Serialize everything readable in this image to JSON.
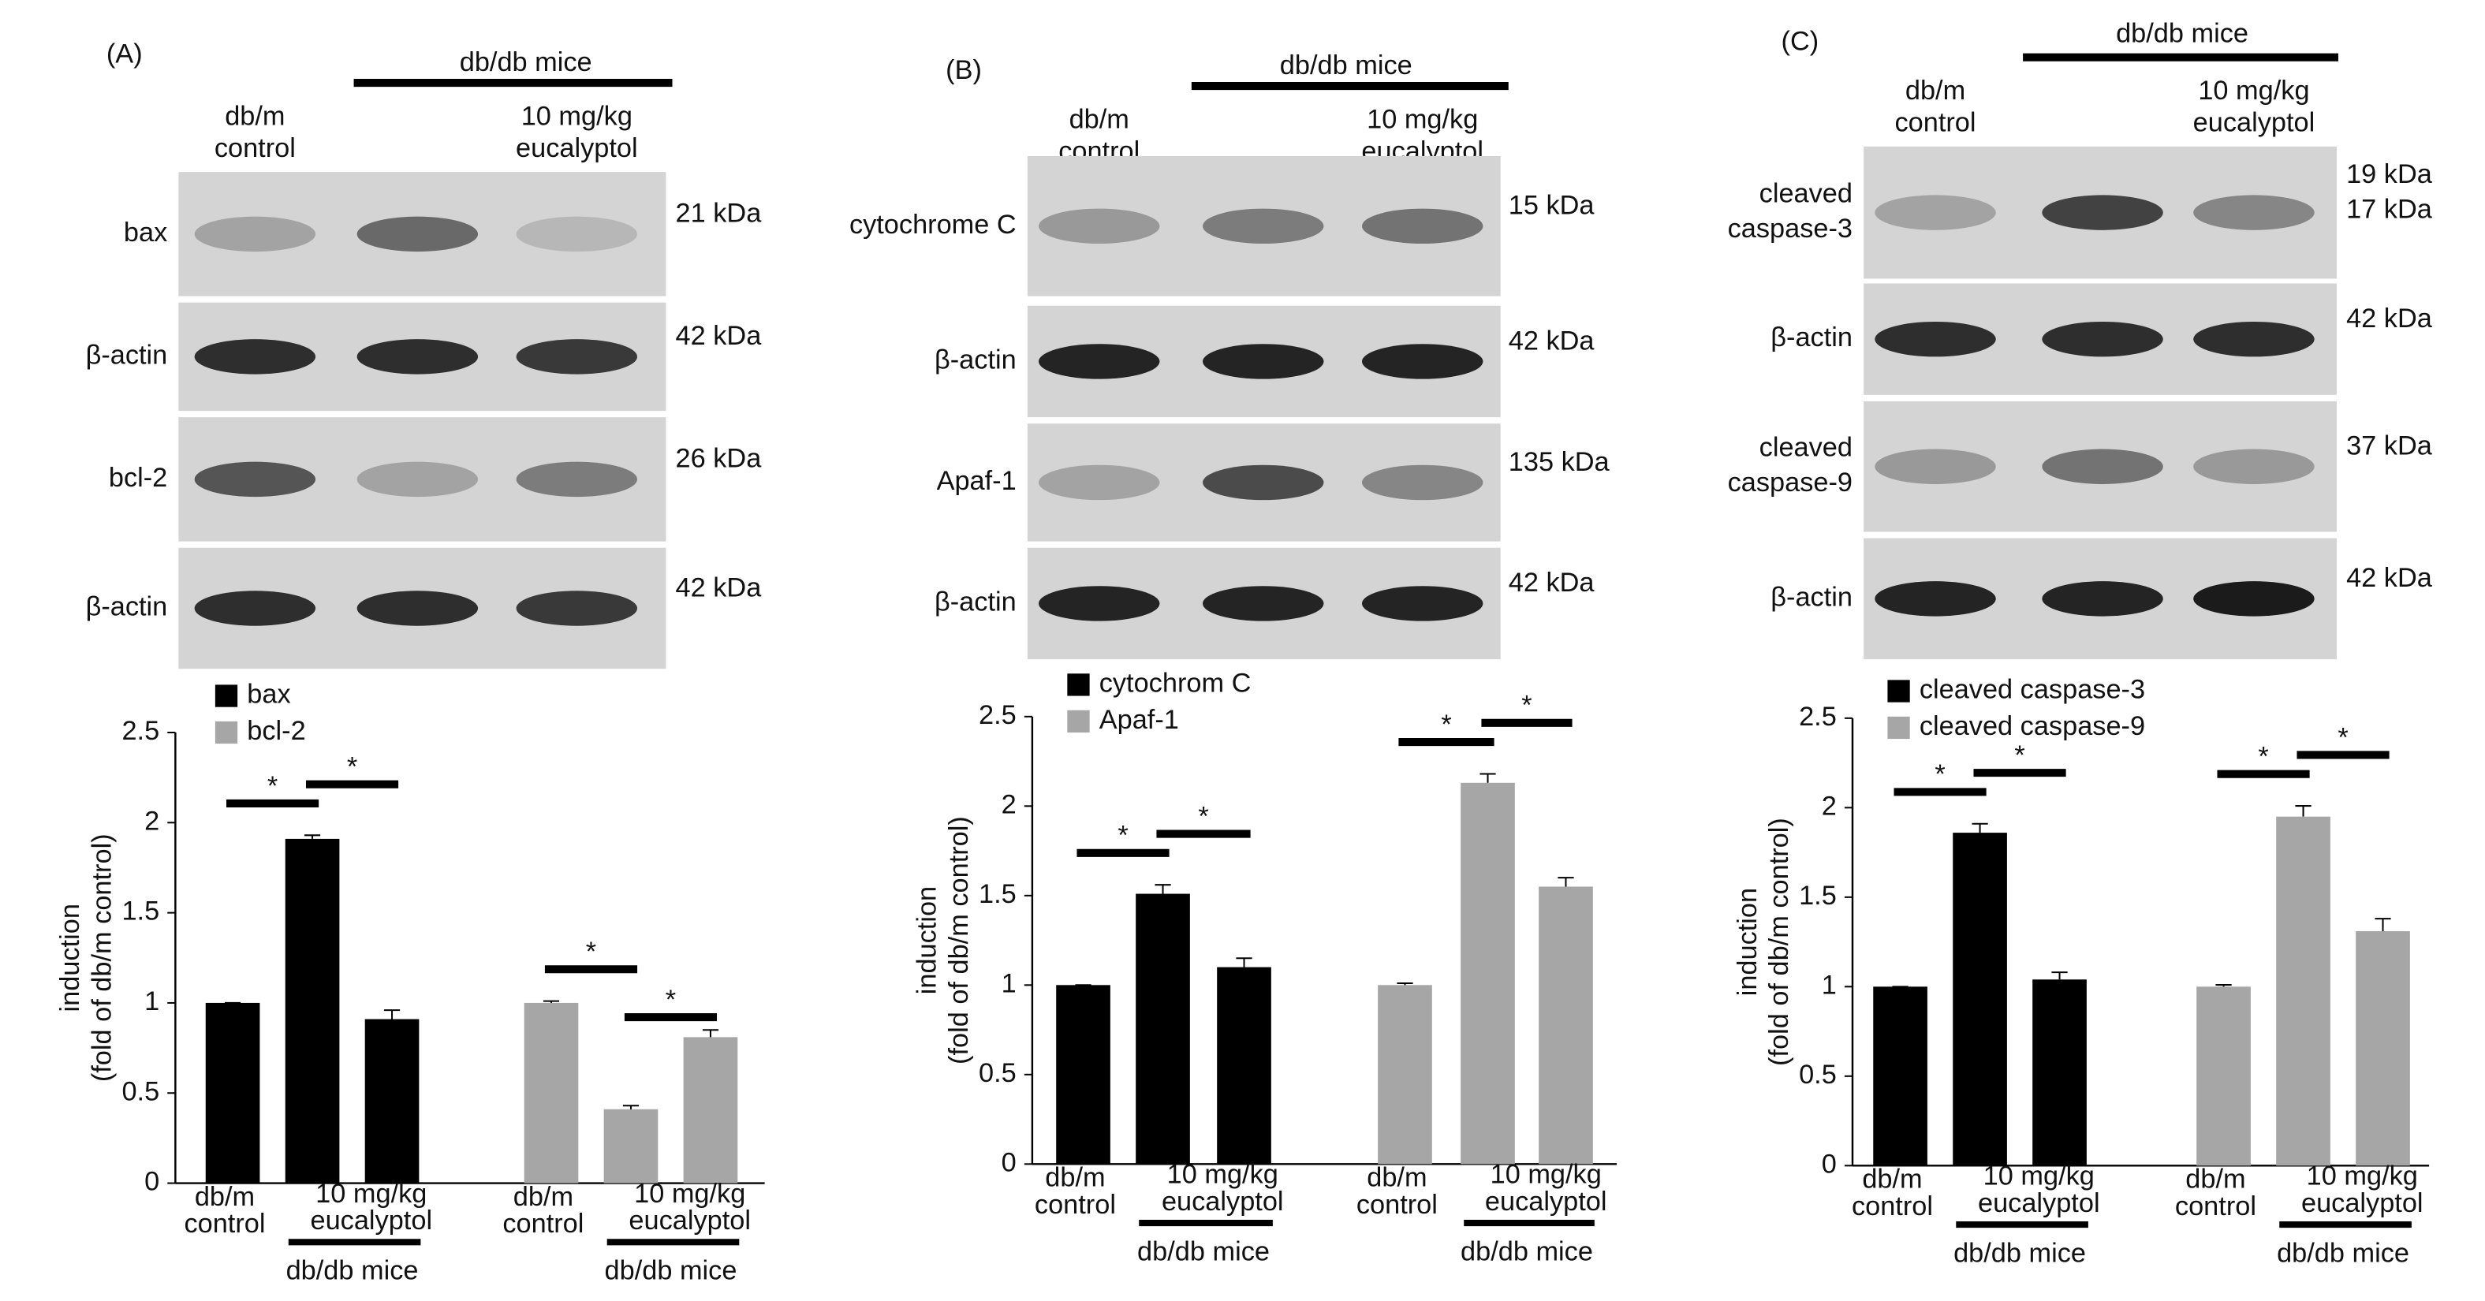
{
  "chart_data": [
    {
      "type": "bar",
      "panel": "(A)",
      "x_labels": {
        "control": [
          "db/m",
          "control"
        ],
        "treatment": [
          "10 mg/kg",
          "eucalyptol"
        ],
        "group": "db/db mice"
      },
      "blot": {
        "rows": [
          {
            "label": [
              "bax"
            ],
            "kda": [
              "21 kDa"
            ]
          },
          {
            "label": [
              "β-actin"
            ],
            "kda": [
              "42  kDa"
            ]
          },
          {
            "label": [
              "bcl-2"
            ],
            "kda": [
              "26  kDa"
            ]
          },
          {
            "label": [
              "β-actin"
            ],
            "kda": [
              "42  kDa"
            ]
          }
        ]
      },
      "ylabel": [
        "induction",
        "(fold of db/m control)"
      ],
      "ylim": [
        0,
        2.5
      ],
      "yticks": [
        0,
        0.5,
        1,
        1.5,
        2,
        2.5
      ],
      "significance": "*",
      "series": [
        {
          "name": "bax",
          "color": "#000000",
          "values": [
            1,
            1.91,
            0.91
          ],
          "errors": [
            0,
            0.02,
            0.05
          ]
        },
        {
          "name": "bcl-2",
          "color": "#a6a6a6",
          "values": [
            1,
            0.41,
            0.81
          ],
          "errors": [
            0.01,
            0.02,
            0.04
          ]
        }
      ]
    },
    {
      "type": "bar",
      "panel": "(B)",
      "x_labels": {
        "control": [
          "db/m",
          "control"
        ],
        "treatment": [
          "10 mg/kg",
          "eucalyptol"
        ],
        "group": "db/db mice"
      },
      "blot": {
        "rows": [
          {
            "label": [
              "cytochrome C"
            ],
            "kda": [
              "15 kDa"
            ]
          },
          {
            "label": [
              "β-actin"
            ],
            "kda": [
              "42 kDa"
            ]
          },
          {
            "label": [
              "Apaf-1"
            ],
            "kda": [
              "135 kDa"
            ]
          },
          {
            "label": [
              "β-actin"
            ],
            "kda": [
              "42 kDa"
            ]
          }
        ]
      },
      "ylabel": [
        "induction",
        "(fold of db/m control)"
      ],
      "ylim": [
        0,
        2.5
      ],
      "yticks": [
        0,
        0.5,
        1,
        1.5,
        2,
        2.5
      ],
      "significance": "*",
      "series": [
        {
          "name": "cytochrom C",
          "color": "#000000",
          "values": [
            1,
            1.51,
            1.1
          ],
          "errors": [
            0,
            0.05,
            0.05
          ]
        },
        {
          "name": "Apaf-1",
          "color": "#a6a6a6",
          "values": [
            1,
            2.13,
            1.55
          ],
          "errors": [
            0.01,
            0.05,
            0.05
          ]
        }
      ]
    },
    {
      "type": "bar",
      "panel": "(C)",
      "x_labels": {
        "control": [
          "db/m",
          "control"
        ],
        "treatment": [
          "10 mg/kg",
          "eucalyptol"
        ],
        "group": "db/db mice"
      },
      "blot": {
        "rows": [
          {
            "label": [
              "cleaved",
              "caspase-3"
            ],
            "kda": [
              "19 kDa",
              "17 kDa"
            ]
          },
          {
            "label": [
              "β-actin"
            ],
            "kda": [
              "42 kDa"
            ]
          },
          {
            "label": [
              "cleaved",
              "caspase-9"
            ],
            "kda": [
              "37 kDa"
            ]
          },
          {
            "label": [
              "β-actin"
            ],
            "kda": [
              "42 kDa"
            ]
          }
        ]
      },
      "ylabel": [
        "induction",
        "(fold of db/m control)"
      ],
      "ylim": [
        0,
        2.5
      ],
      "yticks": [
        0,
        0.5,
        1,
        1.5,
        2,
        2.5
      ],
      "significance": "*",
      "series": [
        {
          "name": "cleaved caspase-3",
          "color": "#000000",
          "values": [
            1,
            1.86,
            1.04
          ],
          "errors": [
            0,
            0.05,
            0.04
          ]
        },
        {
          "name": "cleaved caspase-9",
          "color": "#a6a6a6",
          "values": [
            1,
            1.95,
            1.31
          ],
          "errors": [
            0.01,
            0.06,
            0.07
          ]
        }
      ]
    }
  ]
}
